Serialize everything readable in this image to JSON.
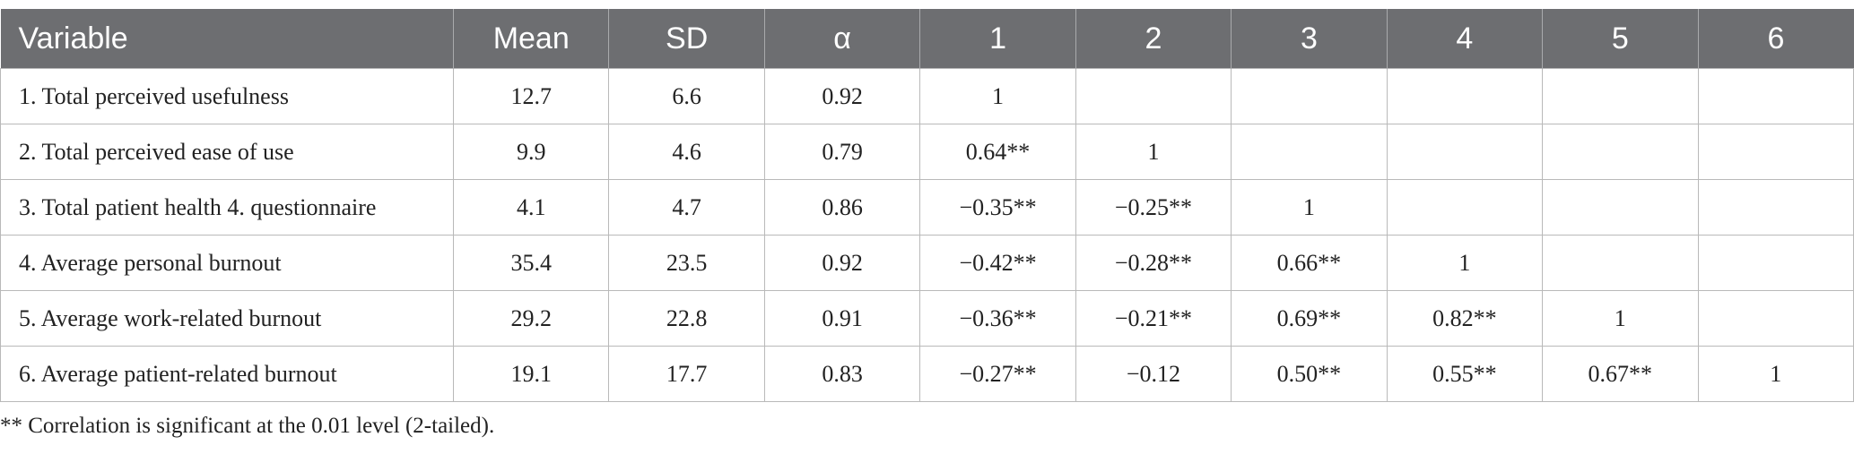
{
  "table": {
    "header": [
      "Variable",
      "Mean",
      "SD",
      "α",
      "1",
      "2",
      "3",
      "4",
      "5",
      "6"
    ],
    "rows": [
      [
        "1. Total perceived usefulness",
        "12.7",
        "6.6",
        "0.92",
        "1",
        null,
        null,
        null,
        null,
        null
      ],
      [
        "2. Total perceived ease of use",
        "9.9",
        "4.6",
        "0.79",
        "0.64**",
        "1",
        null,
        null,
        null,
        null
      ],
      [
        "3. Total patient health 4. questionnaire",
        "4.1",
        "4.7",
        "0.86",
        "−0.35**",
        "−0.25**",
        "1",
        null,
        null,
        null
      ],
      [
        "4. Average personal burnout",
        "35.4",
        "23.5",
        "0.92",
        "−0.42**",
        "−0.28**",
        "0.66**",
        "1",
        null,
        null
      ],
      [
        "5. Average work-related burnout",
        "29.2",
        "22.8",
        "0.91",
        "−0.36**",
        "−0.21**",
        "0.69**",
        "0.82**",
        "1",
        null
      ],
      [
        "6. Average patient-related burnout",
        "19.1",
        "17.7",
        "0.83",
        "−0.27**",
        "−0.12",
        "0.50**",
        "0.55**",
        "0.67**",
        "1"
      ]
    ]
  },
  "footnote": "** Correlation is significant at the 0.01 level (2-tailed)."
}
